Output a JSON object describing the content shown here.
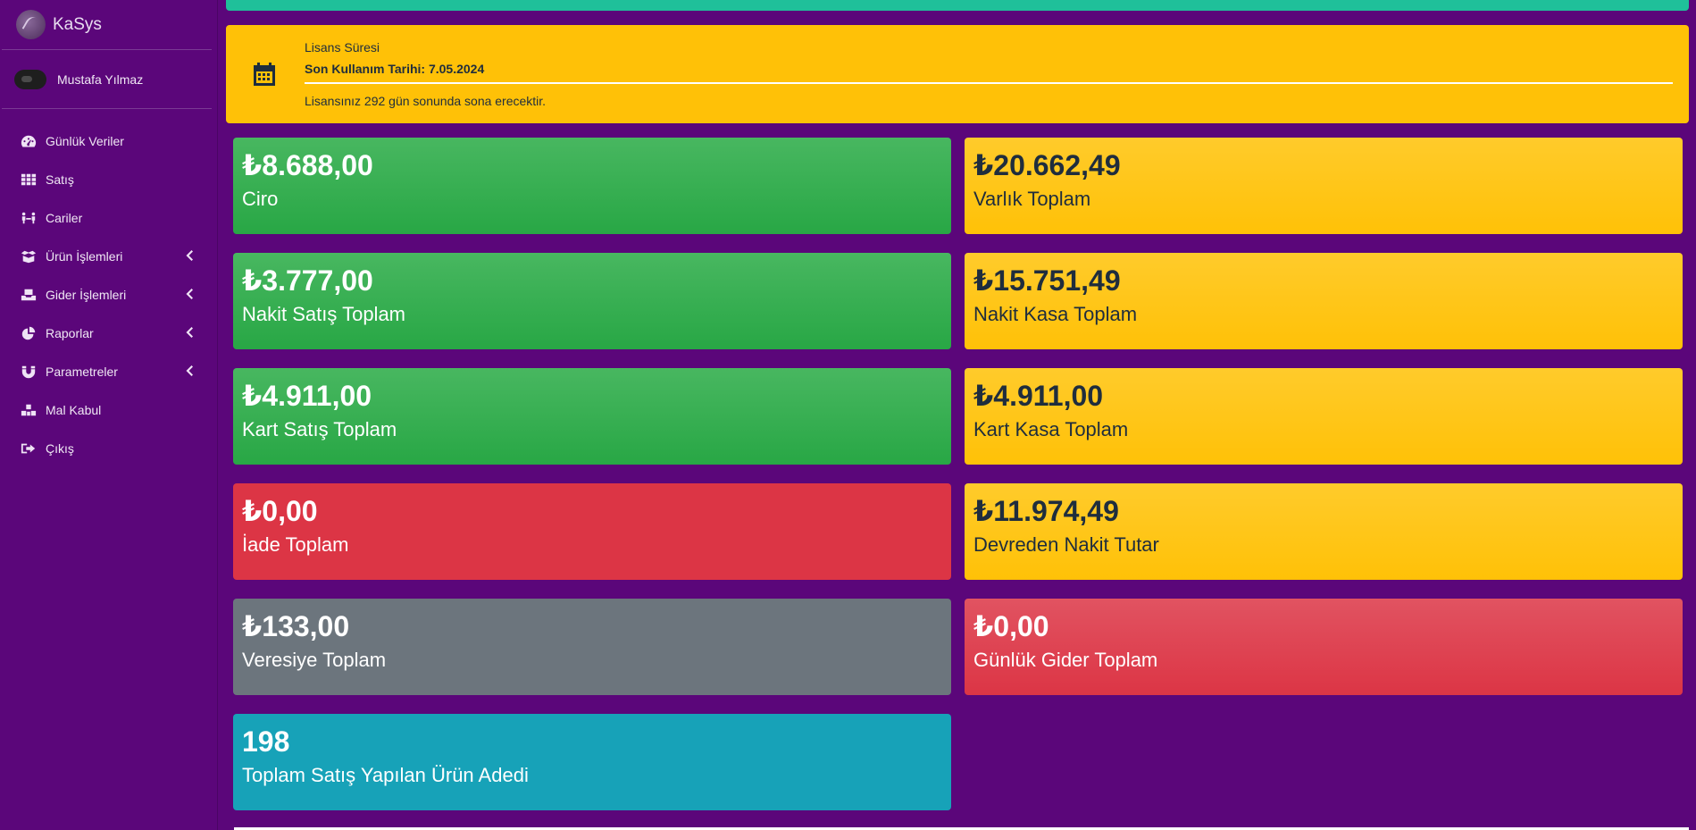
{
  "app": {
    "name": "KaSys"
  },
  "user": {
    "name": "Mustafa Yılmaz"
  },
  "sidebar": {
    "items": [
      {
        "label": "Günlük Veriler",
        "icon": "dashboard-icon"
      },
      {
        "label": "Satış",
        "icon": "grid-icon"
      },
      {
        "label": "Cariler",
        "icon": "people-icon"
      },
      {
        "label": "Ürün İşlemleri",
        "icon": "box-open-icon",
        "expandable": true
      },
      {
        "label": "Gider İşlemleri",
        "icon": "inbox-icon",
        "expandable": true
      },
      {
        "label": "Raporlar",
        "icon": "pie-chart-icon",
        "expandable": true
      },
      {
        "label": "Parametreler",
        "icon": "magnet-icon",
        "expandable": true
      },
      {
        "label": "Mal Kabul",
        "icon": "cubes-icon"
      },
      {
        "label": "Çıkış",
        "icon": "sign-out-icon"
      }
    ]
  },
  "license": {
    "title": "Lisans Süresi",
    "date": "Son Kullanım Tarihi: 7.05.2024",
    "message": "Lisansınız 292 gün sonunda sona erecektir."
  },
  "cards": [
    {
      "value": "₺8.688,00",
      "label": "Ciro",
      "color": "#28a745"
    },
    {
      "value": "₺20.662,49",
      "label": "Varlık Toplam",
      "color": "#ffc107"
    },
    {
      "value": "₺3.777,00",
      "label": "Nakit Satış Toplam",
      "color": "#28a745"
    },
    {
      "value": "₺15.751,49",
      "label": "Nakit Kasa Toplam",
      "color": "#ffc107"
    },
    {
      "value": "₺4.911,00",
      "label": "Kart Satış Toplam",
      "color": "#28a745"
    },
    {
      "value": "₺4.911,00",
      "label": "Kart Kasa Toplam",
      "color": "#ffc107"
    },
    {
      "value": "₺0,00",
      "label": "İade Toplam",
      "color": "#dc3545"
    },
    {
      "value": "₺11.974,49",
      "label": "Devreden Nakit Tutar",
      "color": "#ffc107"
    },
    {
      "value": "₺133,00",
      "label": "Veresiye Toplam",
      "color": "#6c757d"
    },
    {
      "value": "₺0,00",
      "label": "Günlük Gider Toplam",
      "color": "#dc3545"
    },
    {
      "value": "198",
      "label": "Toplam Satış Yapılan Ürün Adedi",
      "color": "#17a2b8"
    }
  ],
  "colors": {
    "sidebar_bg": "#5b067a",
    "topbar": "#1fc09a",
    "license_bg": "#ffc107"
  }
}
